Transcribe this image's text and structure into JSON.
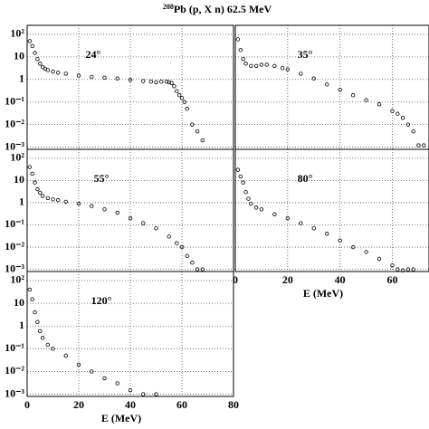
{
  "title_sup": "208",
  "title": "Pb (p, X n) 62.5 MeV",
  "chart_data": [
    {
      "type": "scatter",
      "annotation": "24°",
      "log_y": true,
      "grid": true,
      "color": "#000000",
      "x": [
        1,
        2,
        3,
        4,
        5,
        6,
        7,
        8,
        10,
        12,
        15,
        20,
        25,
        30,
        35,
        40,
        45,
        48,
        50,
        52,
        54,
        55,
        56,
        57,
        58,
        59,
        60,
        61,
        62,
        64,
        66,
        68
      ],
      "y": [
        50,
        30,
        15,
        8,
        5,
        3.5,
        3,
        2.6,
        2.2,
        2,
        1.8,
        1.5,
        1.3,
        1.2,
        1.1,
        0.95,
        0.85,
        0.8,
        0.75,
        0.8,
        0.8,
        0.75,
        0.7,
        0.5,
        0.3,
        0.2,
        0.15,
        0.1,
        0.05,
        0.01,
        0.005,
        0.002
      ],
      "xlim": [
        0,
        80
      ],
      "ylim": [
        0.0008,
        250
      ],
      "xticks": [
        0,
        20,
        40,
        60,
        80
      ],
      "yticks": [
        {
          "value": 100,
          "label": "10²"
        },
        10,
        1,
        {
          "value": 0.1,
          "label": "10⁻¹"
        },
        {
          "value": 0.01,
          "label": "10⁻²"
        },
        {
          "value": 0.001,
          "label": "10⁻³"
        }
      ]
    },
    {
      "type": "scatter",
      "annotation": "35°",
      "log_y": true,
      "grid": true,
      "color": "#000000",
      "x": [
        1,
        2,
        3,
        4,
        6,
        8,
        10,
        12,
        15,
        18,
        20,
        25,
        30,
        35,
        40,
        45,
        50,
        55,
        60,
        62,
        64,
        66,
        68,
        70,
        72
      ],
      "y": [
        60,
        20,
        8,
        5,
        4,
        4,
        4.5,
        4.5,
        4,
        3.2,
        2.8,
        1.8,
        1.1,
        0.6,
        0.35,
        0.2,
        0.12,
        0.08,
        0.04,
        0.03,
        0.02,
        0.01,
        0.005,
        0.0012,
        0.0012
      ],
      "xlim": [
        0,
        74
      ],
      "ylim": [
        0.0008,
        250
      ],
      "xticks": [
        0,
        20,
        40,
        60
      ],
      "yticks": [
        100,
        10,
        1,
        0.1,
        0.01,
        0.001
      ]
    },
    {
      "type": "scatter",
      "annotation": "55°",
      "log_y": true,
      "grid": true,
      "color": "#000000",
      "x": [
        1,
        2,
        3,
        4,
        5,
        6,
        8,
        10,
        12,
        15,
        20,
        25,
        30,
        35,
        40,
        45,
        50,
        55,
        58,
        60,
        62,
        64,
        66,
        68
      ],
      "y": [
        40,
        20,
        8,
        4,
        2.8,
        2,
        1.6,
        1.4,
        1.3,
        1.1,
        0.9,
        0.7,
        0.5,
        0.35,
        0.2,
        0.12,
        0.07,
        0.03,
        0.015,
        0.01,
        0.004,
        0.002,
        0.001,
        0.001
      ],
      "xlim": [
        0,
        80
      ],
      "ylim": [
        0.0008,
        250
      ],
      "xticks": [
        0,
        20,
        40,
        60,
        80
      ],
      "yticks": [
        {
          "value": 100,
          "label": "10²"
        },
        10,
        1,
        {
          "value": 0.1,
          "label": "10⁻¹"
        },
        {
          "value": 0.01,
          "label": "10⁻²"
        },
        {
          "value": 0.001,
          "label": "10⁻³"
        }
      ]
    },
    {
      "type": "scatter",
      "annotation": "80°",
      "log_y": true,
      "grid": true,
      "color": "#000000",
      "xlabel": "E (MeV)",
      "x": [
        1,
        2,
        3,
        4,
        5,
        6,
        8,
        10,
        15,
        20,
        25,
        30,
        35,
        40,
        45,
        50,
        55,
        60,
        62,
        64,
        66,
        68
      ],
      "y": [
        30,
        15,
        8,
        3,
        1.5,
        0.9,
        0.6,
        0.5,
        0.3,
        0.2,
        0.12,
        0.07,
        0.04,
        0.02,
        0.01,
        0.006,
        0.003,
        0.0015,
        0.001,
        0.0009,
        0.001,
        0.001
      ],
      "xlim": [
        0,
        74
      ],
      "ylim": [
        0.0008,
        250
      ],
      "xticks": [
        0,
        20,
        40,
        60
      ],
      "yticks": [
        100,
        10,
        1,
        0.1,
        0.01,
        0.001
      ]
    },
    {
      "type": "scatter",
      "annotation": "120°",
      "log_y": true,
      "grid": true,
      "color": "#000000",
      "xlabel": "E (MeV)",
      "x": [
        1,
        2,
        3,
        4,
        5,
        6,
        8,
        10,
        15,
        20,
        25,
        30,
        35,
        40,
        45,
        50
      ],
      "y": [
        40,
        15,
        4,
        1.5,
        0.6,
        0.3,
        0.15,
        0.1,
        0.05,
        0.02,
        0.01,
        0.005,
        0.003,
        0.0015,
        0.001,
        0.001
      ],
      "xlim": [
        0,
        80
      ],
      "ylim": [
        0.0008,
        250
      ],
      "xticks": [
        0,
        20,
        40,
        60,
        80
      ],
      "yticks": [
        {
          "value": 100,
          "label": "10²"
        },
        10,
        1,
        {
          "value": 0.1,
          "label": "10⁻¹"
        },
        {
          "value": 0.01,
          "label": "10⁻²"
        },
        {
          "value": 0.001,
          "label": "10⁻³"
        }
      ]
    }
  ]
}
